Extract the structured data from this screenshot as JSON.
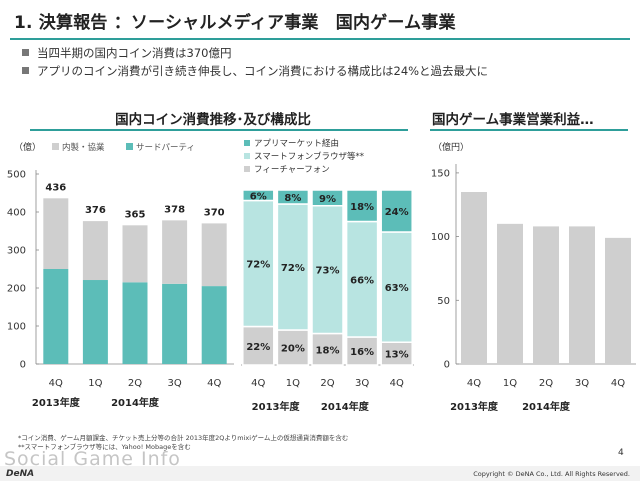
{
  "header": {
    "title": "1. 決算報告 ：ソーシャルメディア事業　国内ゲーム事業",
    "bullets": [
      "当四半期の国内コイン消費は370億円",
      "アプリのコイン消費が引き続き伸長し、コイン消費における構成比は24%と過去最大に"
    ]
  },
  "colors": {
    "accent": "#2e9e9a",
    "teal": "#5cbdb8",
    "gray": "#cfcfcf",
    "light_teal": "#b8e4e1"
  },
  "chart_data": [
    {
      "type": "bar",
      "title": "国内コイン消費推移･及び構成比",
      "ylabel": "（億）",
      "ylim": [
        0,
        500
      ],
      "yticks": [
        "0",
        "100",
        "200",
        "300",
        "400",
        "500"
      ],
      "categories": [
        "4Q",
        "1Q",
        "2Q",
        "3Q",
        "4Q"
      ],
      "year_labels": [
        "2013年度",
        "2014年度"
      ],
      "totals": [
        "436",
        "376",
        "365",
        "378",
        "370"
      ],
      "series": [
        {
          "name": "サードパーティ",
          "values": [
            250,
            221,
            215,
            211,
            205
          ]
        },
        {
          "name": "内製・協業",
          "values": [
            186,
            155,
            150,
            167,
            165
          ]
        }
      ],
      "legend": [
        "内製・協業",
        "サードパーティ"
      ]
    },
    {
      "type": "bar",
      "title": "",
      "categories": [
        "4Q",
        "1Q",
        "2Q",
        "3Q",
        "4Q"
      ],
      "year_labels": [
        "2013年度",
        "2014年度"
      ],
      "legend": [
        "アプリマーケット経由",
        "スマートフォンブラウザ等**",
        "フィーチャーフォン"
      ],
      "series": [
        {
          "name": "フィーチャーフォン",
          "values": [
            22,
            20,
            18,
            16,
            13
          ],
          "labels": [
            "22%",
            "20%",
            "18%",
            "16%",
            "13%"
          ]
        },
        {
          "name": "スマートフォンブラウザ等**",
          "values": [
            72,
            72,
            73,
            66,
            63
          ],
          "labels": [
            "72%",
            "72%",
            "73%",
            "66%",
            "63%"
          ]
        },
        {
          "name": "アプリマーケット経由",
          "values": [
            6,
            8,
            9,
            18,
            24
          ],
          "labels": [
            "6%",
            "8%",
            "9%",
            "18%",
            "24%"
          ]
        }
      ]
    },
    {
      "type": "bar",
      "title": "国内ゲーム事業営業利益…",
      "ylabel": "（億円）",
      "ylim": [
        0,
        165
      ],
      "yticks": [
        "0",
        "50",
        "100",
        "150"
      ],
      "categories": [
        "4Q",
        "1Q",
        "2Q",
        "3Q",
        "4Q"
      ],
      "year_labels": [
        "2013年度",
        "2014年度"
      ],
      "values": [
        135,
        110,
        108,
        108,
        99
      ]
    }
  ],
  "footer": {
    "notes": [
      "*コイン消費、ゲーム月額課金、チケット売上分等の合計  2013年度2Qよりmixiゲーム上の仮想通貨消費額を含む",
      "**スマートフォンブラウザ等には、Yahoo! Mobageを含む"
    ],
    "page": "4",
    "copyright": "Copyright © DeNA Co., Ltd. All Rights Reserved.",
    "logo": "DeNA",
    "watermark": "Social Game Info"
  }
}
